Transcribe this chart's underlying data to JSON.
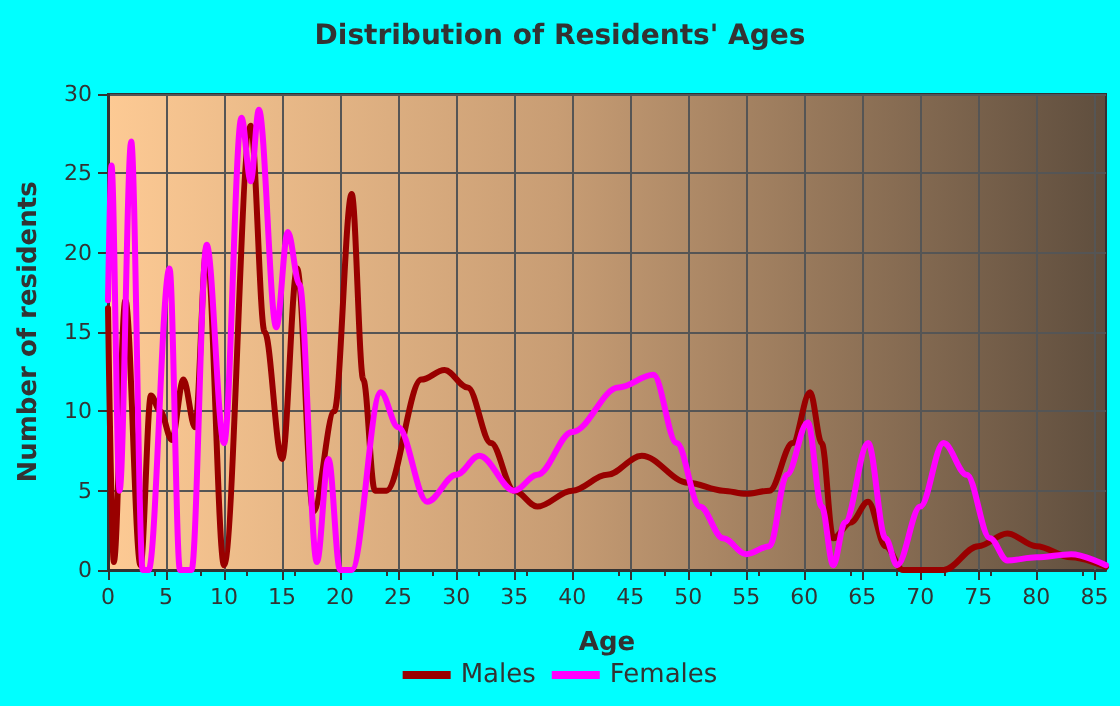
{
  "chart_data": {
    "type": "line",
    "title": "Distribution of Residents' Ages",
    "xlabel": "Age",
    "ylabel": "Number of residents",
    "xlim": [
      0,
      86
    ],
    "xticks": [
      0,
      5,
      10,
      15,
      20,
      25,
      30,
      35,
      40,
      45,
      50,
      55,
      60,
      65,
      70,
      75,
      80,
      85
    ],
    "ylim": [
      0,
      30
    ],
    "yticks": [
      0,
      5,
      10,
      15,
      20,
      25,
      30
    ],
    "grid": true,
    "legend": "bottom",
    "marker": "none",
    "line_style": "solid",
    "series": [
      {
        "name": "Males",
        "color": "#990000",
        "x": [
          0,
          0.5,
          1.5,
          2.8,
          3.7,
          4.5,
          5.5,
          6.5,
          7.5,
          8.5,
          10,
          12.3,
          13.5,
          15,
          16.3,
          17.7,
          19.5,
          21,
          22,
          23,
          24,
          27,
          29,
          31,
          33,
          35,
          37,
          40,
          43,
          46,
          50,
          53,
          55,
          57,
          59,
          60.5,
          61.5,
          62.5,
          64,
          65.5,
          67,
          68.5,
          72,
          75,
          77.5,
          80,
          83,
          86
        ],
        "values": [
          16.5,
          0.5,
          17,
          0.3,
          11,
          10,
          8.2,
          12,
          9,
          20.3,
          0.3,
          28,
          15,
          7,
          19,
          3.7,
          10,
          23.7,
          12,
          5,
          5,
          12,
          12.6,
          11.5,
          8,
          5,
          4,
          5,
          6,
          7.2,
          5.5,
          5,
          4.8,
          5,
          8,
          11.2,
          8,
          2,
          3,
          4.3,
          1.5,
          0,
          0,
          1.5,
          2.3,
          1.5,
          0.8,
          0.2
        ]
      },
      {
        "name": "Females",
        "color": "#ff00ff",
        "x": [
          0,
          0.3,
          1,
          2,
          3,
          3.5,
          5.3,
          6.2,
          7.2,
          8.5,
          10,
          11.5,
          12.3,
          13,
          14.5,
          15.5,
          16.5,
          18,
          19,
          20,
          21,
          23.5,
          25,
          27.5,
          30,
          32,
          35,
          37,
          40,
          44,
          47,
          49,
          51,
          53,
          55,
          57,
          58.5,
          60.3,
          61.5,
          62.5,
          63.5,
          65.5,
          67,
          68,
          70,
          72,
          74,
          76,
          77.5,
          80,
          83,
          86
        ],
        "values": [
          17,
          25.5,
          5,
          27,
          0,
          0,
          19,
          0,
          0,
          20.5,
          8,
          28.5,
          24.5,
          29,
          15.3,
          21.3,
          18,
          0.5,
          7,
          0,
          0,
          11.2,
          9,
          4.3,
          6,
          7.2,
          5,
          6,
          8.7,
          11.5,
          12.3,
          8,
          4,
          2,
          1,
          1.5,
          6,
          9.3,
          4,
          0.3,
          3,
          8,
          2,
          0.3,
          4,
          8,
          6,
          2,
          0.6,
          0.8,
          1,
          0.3
        ]
      }
    ]
  }
}
